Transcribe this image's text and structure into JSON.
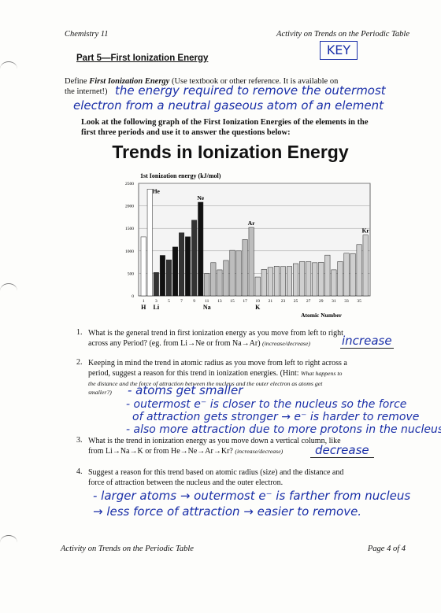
{
  "header": {
    "left": "Chemistry 11",
    "right": "Activity on Trends on the Periodic Table"
  },
  "section_title": "Part 5—First Ionization Energy",
  "key_label": "KEY",
  "define": {
    "prefix": "Define ",
    "term": "First Ionization Energy",
    "rest_line1": " (Use textbook or other reference. It is available on",
    "line2": "the internet!)",
    "answer_line1": "the energy required to remove the outermost",
    "answer_line2": "electron from a neutral gaseous atom of an element"
  },
  "instructions": {
    "line1": "Look at the following graph of the First Ionization Energies of the elements in the",
    "line2": "first three periods and use it to answer the questions below:"
  },
  "chart_title": "Trends in Ionization Energy",
  "chart_data": {
    "type": "bar",
    "title": "Trends in Ionization Energy",
    "ylabel": "1st Ionization energy (kJ/mol)",
    "xlabel": "Atomic Number",
    "ylim": [
      0,
      2500
    ],
    "yticks": [
      0,
      500,
      1000,
      1500,
      2000,
      2500
    ],
    "x": [
      1,
      2,
      3,
      4,
      5,
      6,
      7,
      8,
      9,
      10,
      11,
      12,
      13,
      14,
      15,
      16,
      17,
      18,
      19,
      20,
      21,
      22,
      23,
      24,
      25,
      26,
      27,
      28,
      29,
      30,
      31,
      32,
      33,
      34,
      35,
      36
    ],
    "values": [
      1312,
      2372,
      520,
      900,
      801,
      1086,
      1402,
      1314,
      1681,
      2081,
      496,
      738,
      578,
      787,
      1012,
      1000,
      1251,
      1521,
      419,
      590,
      633,
      659,
      651,
      653,
      717,
      762,
      760,
      737,
      746,
      906,
      579,
      762,
      947,
      941,
      1140,
      1351
    ],
    "xtick_labels": [
      "1",
      "3",
      "5",
      "7",
      "9",
      "11",
      "13",
      "15",
      "17",
      "19",
      "21",
      "23",
      "25",
      "27",
      "29",
      "31",
      "33",
      "35"
    ],
    "element_labels_top": {
      "He": 2,
      "Ne": 10,
      "Ar": 18,
      "Kr": 36
    },
    "element_labels_bottom": {
      "H": 1,
      "Li": 3,
      "Na": 11,
      "K": 19
    },
    "grid": true
  },
  "questions": {
    "q1": {
      "num": "1.",
      "line1": "What is the general trend in first ionization energy as you move from left to right",
      "line2": "across any Period? (eg. from Li→Ne or from Na→Ar)",
      "hint": "(increase/decrease)",
      "answer": "increase"
    },
    "q2": {
      "num": "2.",
      "line1": "Keeping in mind the trend in atomic radius as you move from left to right across a",
      "line2": "period, suggest a reason for this trend in ionization energies. (Hint:",
      "hint_line2": "What happens to",
      "hint_line3": "the distance and the force of attraction between the nucleus and the outer electron as atoms get",
      "hint_line4": "smaller?)",
      "answer_line1": "- atoms get smaller",
      "answer_line2": "- outermost e⁻ is closer to the nucleus so the force",
      "answer_line3": "of attraction gets stronger → e⁻ is harder to remove",
      "answer_line4": "- also more attraction due to more protons in the nucleus"
    },
    "q3": {
      "num": "3.",
      "line1": "What is the trend in ionization energy as you move down a vertical column, like",
      "line2": "from Li→Na→K or from He→Ne→Ar→Kr?",
      "hint": "(increase/decrease)",
      "answer": "decrease"
    },
    "q4": {
      "num": "4.",
      "line1": "Suggest a reason for this trend based on atomic radius (size) and the distance and",
      "line2": "force of attraction between the nucleus and the outer electron.",
      "answer_line1": "- larger atoms → outermost e⁻ is farther from nucleus",
      "answer_line2": "→ less force of attraction → easier to remove."
    }
  },
  "footer": {
    "left": "Activity on Trends on the Periodic Table",
    "right": "Page 4 of 4"
  }
}
